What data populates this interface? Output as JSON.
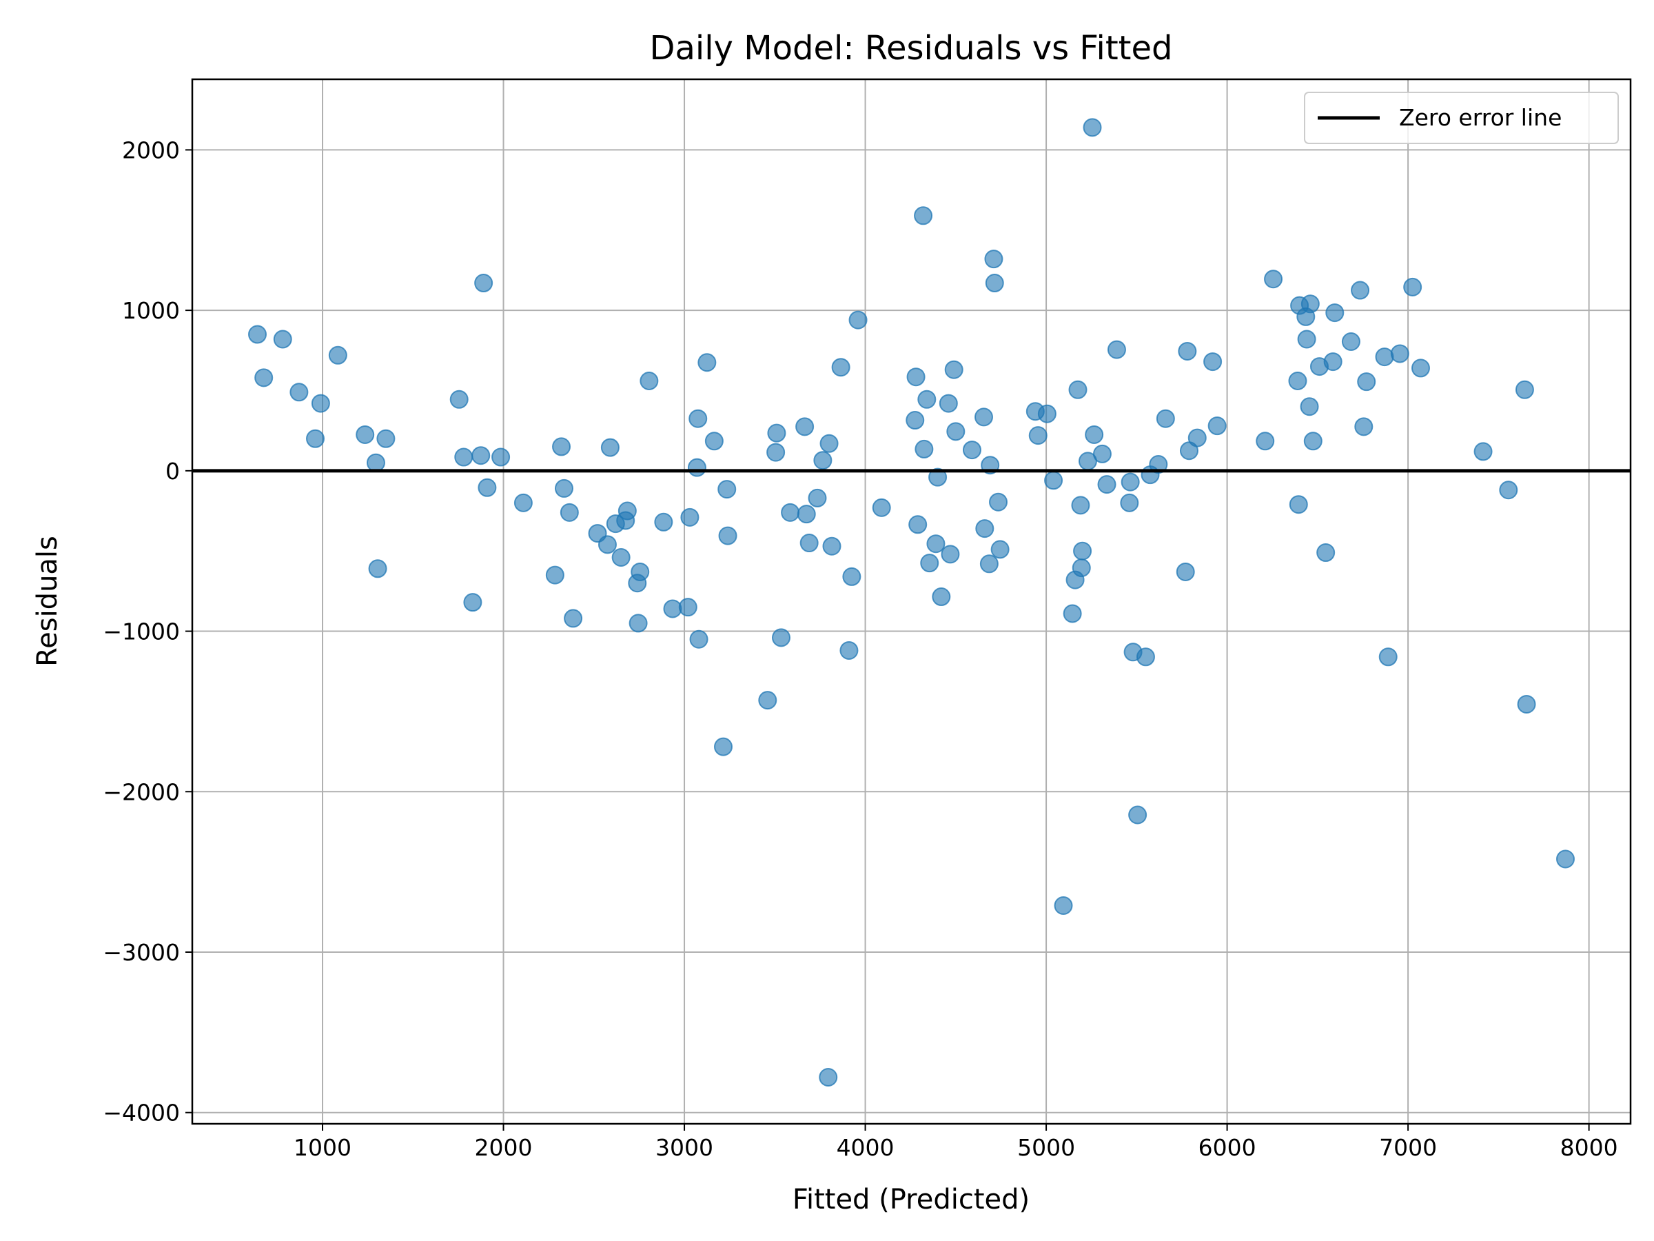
{
  "chart_data": {
    "type": "scatter",
    "title": "Daily Model: Residuals vs Fitted",
    "xlabel": "Fitted (Predicted)",
    "ylabel": "Residuals",
    "xlim": [
      280,
      8230
    ],
    "ylim": [
      -4070,
      2440
    ],
    "xticks": [
      1000,
      2000,
      3000,
      4000,
      5000,
      6000,
      7000,
      8000
    ],
    "yticks": [
      2000,
      1000,
      0,
      -1000,
      -2000,
      -3000,
      -4000
    ],
    "xtick_labels": [
      "1000",
      "2000",
      "3000",
      "4000",
      "5000",
      "6000",
      "7000",
      "8000"
    ],
    "ytick_labels": [
      "2000",
      "1000",
      "0",
      "−1000",
      "−2000",
      "−3000",
      "−4000"
    ],
    "grid": true,
    "legend": {
      "placement": "top-right",
      "entries": [
        "Zero error line"
      ]
    },
    "reference_line": {
      "y": 0,
      "color": "#000000",
      "name": "Zero error line"
    },
    "point_color": "#1f77b4",
    "points": [
      [
        640,
        850
      ],
      [
        675,
        580
      ],
      [
        780,
        820
      ],
      [
        870,
        490
      ],
      [
        960,
        200
      ],
      [
        990,
        420
      ],
      [
        1085,
        720
      ],
      [
        1235,
        225
      ],
      [
        1295,
        50
      ],
      [
        1305,
        -610
      ],
      [
        1350,
        200
      ],
      [
        1755,
        445
      ],
      [
        1780,
        85
      ],
      [
        1830,
        -820
      ],
      [
        1875,
        95
      ],
      [
        1890,
        1170
      ],
      [
        1910,
        -105
      ],
      [
        1985,
        85
      ],
      [
        2110,
        -200
      ],
      [
        2285,
        -650
      ],
      [
        2320,
        150
      ],
      [
        2335,
        -110
      ],
      [
        2365,
        -260
      ],
      [
        2385,
        -920
      ],
      [
        2520,
        -390
      ],
      [
        2575,
        -460
      ],
      [
        2590,
        145
      ],
      [
        2620,
        -330
      ],
      [
        2650,
        -540
      ],
      [
        2675,
        -310
      ],
      [
        2685,
        -250
      ],
      [
        2740,
        -700
      ],
      [
        2745,
        -950
      ],
      [
        2755,
        -630
      ],
      [
        2805,
        560
      ],
      [
        2885,
        -320
      ],
      [
        2935,
        -860
      ],
      [
        3020,
        -850
      ],
      [
        3030,
        -290
      ],
      [
        3070,
        20
      ],
      [
        3075,
        325
      ],
      [
        3080,
        -1050
      ],
      [
        3125,
        675
      ],
      [
        3165,
        185
      ],
      [
        3215,
        -1720
      ],
      [
        3235,
        -115
      ],
      [
        3240,
        -405
      ],
      [
        3460,
        -1430
      ],
      [
        3505,
        115
      ],
      [
        3510,
        235
      ],
      [
        3535,
        -1040
      ],
      [
        3585,
        -260
      ],
      [
        3665,
        275
      ],
      [
        3675,
        -270
      ],
      [
        3690,
        -450
      ],
      [
        3735,
        -170
      ],
      [
        3765,
        65
      ],
      [
        3795,
        -3780
      ],
      [
        3800,
        170
      ],
      [
        3815,
        -470
      ],
      [
        3865,
        645
      ],
      [
        3910,
        -1120
      ],
      [
        3925,
        -660
      ],
      [
        3960,
        940
      ],
      [
        4090,
        -230
      ],
      [
        4275,
        315
      ],
      [
        4280,
        585
      ],
      [
        4290,
        -335
      ],
      [
        4320,
        1590
      ],
      [
        4325,
        135
      ],
      [
        4340,
        445
      ],
      [
        4355,
        -575
      ],
      [
        4390,
        -455
      ],
      [
        4400,
        -40
      ],
      [
        4420,
        -785
      ],
      [
        4460,
        420
      ],
      [
        4470,
        -520
      ],
      [
        4490,
        630
      ],
      [
        4500,
        245
      ],
      [
        4590,
        130
      ],
      [
        4655,
        335
      ],
      [
        4660,
        -360
      ],
      [
        4685,
        -580
      ],
      [
        4690,
        35
      ],
      [
        4710,
        1320
      ],
      [
        4715,
        1170
      ],
      [
        4735,
        -195
      ],
      [
        4745,
        -490
      ],
      [
        4940,
        370
      ],
      [
        4955,
        220
      ],
      [
        5005,
        355
      ],
      [
        5040,
        -60
      ],
      [
        5095,
        -2710
      ],
      [
        5145,
        -890
      ],
      [
        5160,
        -680
      ],
      [
        5175,
        505
      ],
      [
        5190,
        -215
      ],
      [
        5195,
        -605
      ],
      [
        5200,
        -500
      ],
      [
        5230,
        60
      ],
      [
        5255,
        2140
      ],
      [
        5265,
        225
      ],
      [
        5310,
        105
      ],
      [
        5335,
        -85
      ],
      [
        5390,
        755
      ],
      [
        5460,
        -200
      ],
      [
        5465,
        -70
      ],
      [
        5480,
        -1130
      ],
      [
        5505,
        -2145
      ],
      [
        5550,
        -1160
      ],
      [
        5575,
        -25
      ],
      [
        5620,
        40
      ],
      [
        5660,
        325
      ],
      [
        5770,
        -630
      ],
      [
        5780,
        745
      ],
      [
        5790,
        125
      ],
      [
        5835,
        205
      ],
      [
        5920,
        680
      ],
      [
        5945,
        280
      ],
      [
        6210,
        185
      ],
      [
        6255,
        1195
      ],
      [
        6390,
        560
      ],
      [
        6395,
        -210
      ],
      [
        6400,
        1030
      ],
      [
        6435,
        960
      ],
      [
        6440,
        820
      ],
      [
        6455,
        400
      ],
      [
        6460,
        1040
      ],
      [
        6475,
        185
      ],
      [
        6510,
        650
      ],
      [
        6545,
        -510
      ],
      [
        6585,
        680
      ],
      [
        6595,
        985
      ],
      [
        6685,
        805
      ],
      [
        6735,
        1125
      ],
      [
        6755,
        275
      ],
      [
        6770,
        555
      ],
      [
        6870,
        710
      ],
      [
        6890,
        -1160
      ],
      [
        6955,
        730
      ],
      [
        7025,
        1145
      ],
      [
        7070,
        640
      ],
      [
        7415,
        120
      ],
      [
        7555,
        -120
      ],
      [
        7645,
        505
      ],
      [
        7655,
        -1455
      ],
      [
        7870,
        -2420
      ]
    ]
  }
}
